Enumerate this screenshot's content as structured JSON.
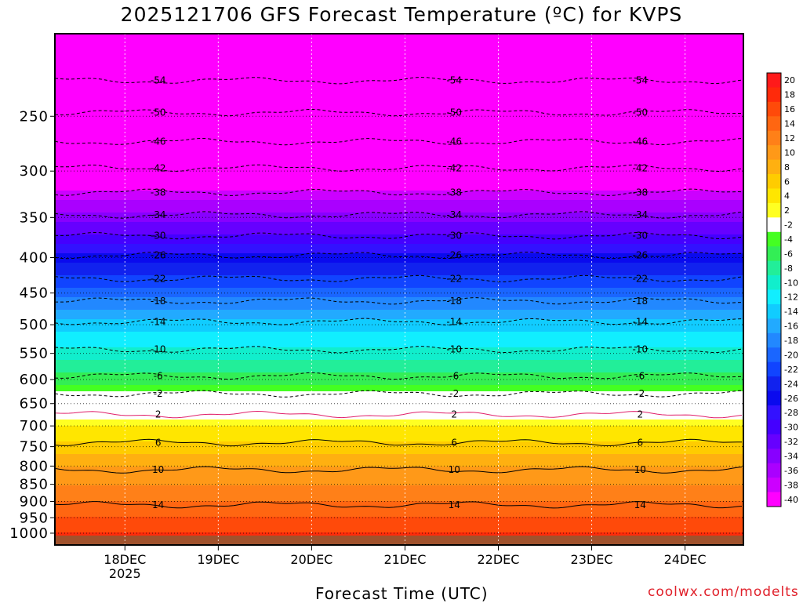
{
  "title": "2025121706 GFS Forecast Temperature (ºC) for KVPS",
  "xlabel": "Forecast Time (UTC)",
  "credit": "coolwx.com/modelts",
  "chart_data": {
    "type": "heatmap",
    "title": "2025121706 GFS Forecast Temperature (ºC) for KVPS",
    "xlabel": "Forecast Time (UTC)",
    "ylabel": "",
    "y_axis": {
      "scale": "log",
      "inverted": true,
      "range": [
        1040,
        190
      ],
      "ticks": [
        250,
        300,
        350,
        400,
        450,
        500,
        550,
        600,
        650,
        700,
        750,
        800,
        850,
        900,
        950,
        1000
      ]
    },
    "x_axis": {
      "range": [
        "2025-12-17T06",
        "2025-12-24T15"
      ],
      "ticks": [
        "18DEC",
        "19DEC",
        "20DEC",
        "21DEC",
        "22DEC",
        "23DEC",
        "24DEC"
      ],
      "tick_year": "2025"
    },
    "grid": true,
    "colorbar": {
      "position": "right",
      "labels": [
        "20",
        "18",
        "16",
        "14",
        "12",
        "10",
        "8",
        "6",
        "4",
        "2",
        "-2",
        "-4",
        "-6",
        "-8",
        "-10",
        "-12",
        "-14",
        "-16",
        "-18",
        "-20",
        "-22",
        "-24",
        "-26",
        "-28",
        "-30",
        "-32",
        "-34",
        "-36",
        "-38",
        "-40"
      ],
      "colors": [
        "#ff1a1a",
        "#ff2a0a",
        "#ff4a0a",
        "#ff6611",
        "#ff8018",
        "#ff9918",
        "#ffb010",
        "#ffcc00",
        "#ffe600",
        "#ffff22",
        "#ffffff",
        "#44ff22",
        "#33ee55",
        "#22ee99",
        "#11eecc",
        "#11eeff",
        "#11ccff",
        "#22aaff",
        "#2288ff",
        "#1a66ff",
        "#1144ff",
        "#1122ee",
        "#0a0aee",
        "#3311ff",
        "#4400ff",
        "#6600ff",
        "#8800ff",
        "#aa00ff",
        "#cc00ff",
        "#ff00ff"
      ]
    },
    "contour_labels": [
      "-54",
      "-50",
      "-46",
      "-42",
      "-38",
      "-34",
      "-30",
      "-26",
      "-22",
      "-18",
      "-14",
      "-10",
      "-6",
      "-2",
      "2",
      "6",
      "10",
      "14"
    ],
    "temperature_levels": [
      {
        "pressure": 250,
        "temp": -50
      },
      {
        "pressure": 300,
        "temp": -42
      },
      {
        "pressure": 350,
        "temp": -34
      },
      {
        "pressure": 400,
        "temp": -26
      },
      {
        "pressure": 450,
        "temp": -20
      },
      {
        "pressure": 500,
        "temp": -14
      },
      {
        "pressure": 550,
        "temp": -10
      },
      {
        "pressure": 600,
        "temp": -6
      },
      {
        "pressure": 650,
        "temp": 0
      },
      {
        "pressure": 700,
        "temp": 3
      },
      {
        "pressure": 750,
        "temp": 6
      },
      {
        "pressure": 800,
        "temp": 9
      },
      {
        "pressure": 850,
        "temp": 11
      },
      {
        "pressure": 900,
        "temp": 13
      },
      {
        "pressure": 950,
        "temp": 15
      },
      {
        "pressure": 1000,
        "temp": 17
      }
    ]
  }
}
